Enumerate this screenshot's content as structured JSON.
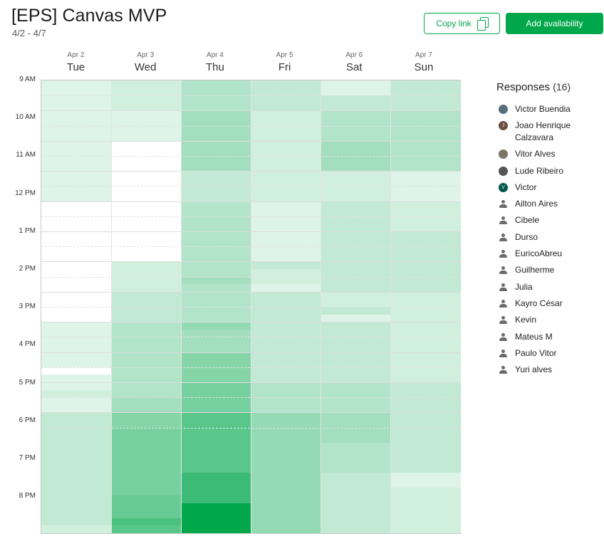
{
  "header": {
    "title": "[EPS] Canvas MVP",
    "date_range": "4/2 - 4/7",
    "copy_link_label": "Copy link",
    "add_availability_label": "Add availability"
  },
  "colors": {
    "accent": "#00a74b",
    "heat_max": "#00a74b"
  },
  "days": [
    {
      "date": "Apr 2",
      "weekday": "Tue"
    },
    {
      "date": "Apr 3",
      "weekday": "Wed"
    },
    {
      "date": "Apr 4",
      "weekday": "Thu"
    },
    {
      "date": "Apr 5",
      "weekday": "Fri"
    },
    {
      "date": "Apr 6",
      "weekday": "Sat"
    },
    {
      "date": "Apr 7",
      "weekday": "Sun"
    }
  ],
  "time_labels": [
    "9 AM",
    "10 AM",
    "11 AM",
    "12 PM",
    "1 PM",
    "2 PM",
    "3 PM",
    "4 PM",
    "5 PM",
    "6 PM",
    "7 PM",
    "8 PM"
  ],
  "availability": {
    "slot_minutes": 15,
    "start": "9 AM",
    "end": "9 PM",
    "max_count": 16,
    "days": [
      [
        1,
        1,
        1,
        1,
        1,
        1,
        1,
        1,
        1,
        1,
        1,
        1,
        1,
        1,
        1,
        1,
        0,
        0,
        0,
        0,
        0,
        0,
        0,
        0,
        0,
        0,
        0,
        0,
        0,
        0,
        0,
        0,
        1,
        1,
        1,
        1,
        1,
        1,
        0,
        1,
        1,
        2,
        1,
        1,
        3,
        3,
        3,
        3,
        3,
        3,
        3,
        3,
        3,
        3,
        3,
        3,
        3,
        3,
        3,
        2
      ],
      [
        2,
        2,
        2,
        2,
        1,
        1,
        1,
        1,
        0,
        0,
        0,
        0,
        0,
        0,
        0,
        0,
        0,
        0,
        0,
        0,
        0,
        0,
        0,
        0,
        2,
        2,
        2,
        2,
        3,
        3,
        3,
        3,
        4,
        4,
        4,
        4,
        4,
        4,
        4,
        4,
        4,
        4,
        5,
        5,
        7,
        7,
        8,
        8,
        8,
        8,
        8,
        8,
        8,
        8,
        8,
        9,
        9,
        9,
        11,
        10
      ],
      [
        4,
        4,
        4,
        4,
        5,
        5,
        5,
        5,
        5,
        5,
        5,
        5,
        3,
        3,
        3,
        3,
        4,
        4,
        4,
        4,
        4,
        4,
        4,
        4,
        4,
        4,
        5,
        4,
        4,
        4,
        4,
        4,
        6,
        5,
        5,
        5,
        7,
        7,
        7,
        7,
        8,
        8,
        8,
        8,
        10,
        10,
        10,
        10,
        10,
        10,
        10,
        10,
        12,
        12,
        12,
        12,
        16,
        16,
        16,
        16
      ],
      [
        3,
        3,
        3,
        3,
        2,
        2,
        2,
        2,
        2,
        2,
        2,
        2,
        2,
        2,
        2,
        2,
        1,
        1,
        1,
        1,
        1,
        1,
        1,
        1,
        3,
        2,
        2,
        1,
        3,
        3,
        3,
        3,
        3,
        3,
        3,
        3,
        3,
        3,
        3,
        3,
        4,
        4,
        4,
        4,
        6,
        6,
        6,
        6,
        6,
        6,
        6,
        6,
        6,
        6,
        6,
        6,
        6,
        6,
        6,
        6
      ],
      [
        1,
        1,
        3,
        3,
        4,
        4,
        4,
        4,
        5,
        5,
        5,
        5,
        2,
        2,
        2,
        2,
        3,
        3,
        3,
        3,
        3,
        3,
        3,
        3,
        3,
        3,
        3,
        3,
        2,
        2,
        3,
        1,
        3,
        3,
        3,
        3,
        3,
        3,
        3,
        3,
        4,
        4,
        4,
        4,
        5,
        5,
        5,
        5,
        4,
        4,
        4,
        4,
        3,
        3,
        3,
        3,
        3,
        3,
        3,
        3
      ],
      [
        3,
        3,
        3,
        3,
        4,
        4,
        4,
        4,
        4,
        4,
        4,
        4,
        1,
        1,
        1,
        1,
        2,
        2,
        2,
        2,
        3,
        3,
        3,
        3,
        3,
        3,
        3,
        3,
        2,
        2,
        2,
        2,
        2,
        2,
        2,
        2,
        2,
        2,
        2,
        2,
        3,
        3,
        3,
        3,
        3,
        3,
        3,
        3,
        3,
        3,
        3,
        3,
        1,
        1,
        2,
        2,
        2,
        2,
        2,
        2
      ]
    ]
  },
  "responses": {
    "title": "Responses",
    "count": "(16)",
    "people": [
      {
        "name": "Victor Buendia",
        "avatar": "photo",
        "color": "#5a6d7a"
      },
      {
        "name": "Joao Henrique Calzavara",
        "avatar": "initial",
        "initial": "J",
        "color": "#6d4c41"
      },
      {
        "name": "Vitor Alves",
        "avatar": "photo",
        "color": "#7d7468"
      },
      {
        "name": "Lude Ribeiro",
        "avatar": "photo",
        "color": "#555555"
      },
      {
        "name": "Victor",
        "avatar": "initial",
        "initial": "V",
        "color": "#00574b"
      },
      {
        "name": "Ailton Aires",
        "avatar": "person-icon"
      },
      {
        "name": "Cibele",
        "avatar": "person-icon"
      },
      {
        "name": "Durso",
        "avatar": "person-icon"
      },
      {
        "name": "EuricoAbreu",
        "avatar": "person-icon"
      },
      {
        "name": "Guilherme",
        "avatar": "person-icon"
      },
      {
        "name": "Julia",
        "avatar": "person-icon"
      },
      {
        "name": "Kayro César",
        "avatar": "person-icon"
      },
      {
        "name": "Kevin",
        "avatar": "person-icon"
      },
      {
        "name": "Mateus M",
        "avatar": "person-icon"
      },
      {
        "name": "Paulo Vitor",
        "avatar": "person-icon"
      },
      {
        "name": "Yuri alves",
        "avatar": "person-icon"
      }
    ]
  }
}
